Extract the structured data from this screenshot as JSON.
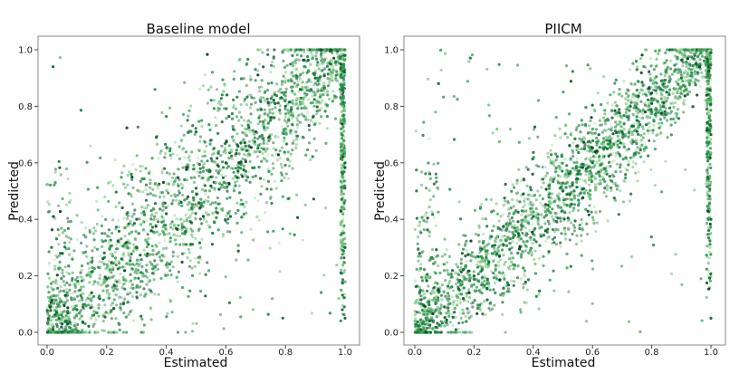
{
  "chart_data": [
    {
      "type": "scatter",
      "title": "Baseline model",
      "xlabel": "Estimated",
      "ylabel": "Predicted",
      "xlim": [
        0.0,
        1.0
      ],
      "ylim": [
        0.0,
        1.0
      ],
      "xticks": [
        "0.0",
        "0.2",
        "0.4",
        "0.6",
        "0.8",
        "1.0"
      ],
      "yticks": [
        "0.0",
        "0.2",
        "0.4",
        "0.6",
        "0.8",
        "1.0"
      ],
      "grid": false,
      "color": "#1b7a3a",
      "description_values": {
        "correlation_spread": 0.17,
        "boundary_x1_density": "high",
        "n_points_rendered": 2600
      },
      "series": [
        {
          "points": [
            [
              0.02,
              0.01
            ],
            [
              0.05,
              0.03
            ],
            [
              0.1,
              0.08
            ],
            [
              0.15,
              0.14
            ],
            [
              0.2,
              0.19
            ],
            [
              0.25,
              0.26
            ],
            [
              0.3,
              0.3
            ],
            [
              0.35,
              0.36
            ],
            [
              0.4,
              0.42
            ],
            [
              0.45,
              0.46
            ],
            [
              0.5,
              0.51
            ],
            [
              0.55,
              0.55
            ],
            [
              0.6,
              0.6
            ],
            [
              0.65,
              0.67
            ],
            [
              0.7,
              0.71
            ],
            [
              0.75,
              0.76
            ],
            [
              0.8,
              0.8
            ],
            [
              0.85,
              0.86
            ],
            [
              0.9,
              0.9
            ],
            [
              0.95,
              0.95
            ],
            [
              1.0,
              0.98
            ],
            [
              1.0,
              0.6
            ],
            [
              1.0,
              0.3
            ],
            [
              1.0,
              0.05
            ],
            [
              0.02,
              0.94
            ]
          ]
        }
      ]
    },
    {
      "type": "scatter",
      "title": "PIICM",
      "xlabel": "Estimated",
      "ylabel": "Predicted",
      "xlim": [
        0.0,
        1.0
      ],
      "ylim": [
        0.0,
        1.0
      ],
      "xticks": [
        "0.0",
        "0.2",
        "0.4",
        "0.6",
        "0.8",
        "1.0"
      ],
      "yticks": [
        "0.0",
        "0.2",
        "0.4",
        "0.6",
        "0.8",
        "1.0"
      ],
      "grid": false,
      "color": "#1b7a3a",
      "description_values": {
        "correlation_spread": 0.12,
        "boundary_x1_density": "medium",
        "n_points_rendered": 2600
      },
      "series": [
        {
          "points": [
            [
              0.02,
              0.01
            ],
            [
              0.05,
              0.04
            ],
            [
              0.1,
              0.09
            ],
            [
              0.15,
              0.15
            ],
            [
              0.2,
              0.2
            ],
            [
              0.25,
              0.25
            ],
            [
              0.3,
              0.31
            ],
            [
              0.35,
              0.35
            ],
            [
              0.4,
              0.41
            ],
            [
              0.45,
              0.45
            ],
            [
              0.5,
              0.5
            ],
            [
              0.55,
              0.56
            ],
            [
              0.6,
              0.6
            ],
            [
              0.65,
              0.65
            ],
            [
              0.7,
              0.71
            ],
            [
              0.75,
              0.75
            ],
            [
              0.8,
              0.81
            ],
            [
              0.85,
              0.85
            ],
            [
              0.9,
              0.9
            ],
            [
              0.95,
              0.95
            ],
            [
              1.0,
              0.99
            ],
            [
              1.0,
              0.7
            ],
            [
              1.0,
              0.4
            ],
            [
              1.0,
              0.05
            ],
            [
              0.08,
              0.88
            ]
          ]
        }
      ]
    }
  ]
}
